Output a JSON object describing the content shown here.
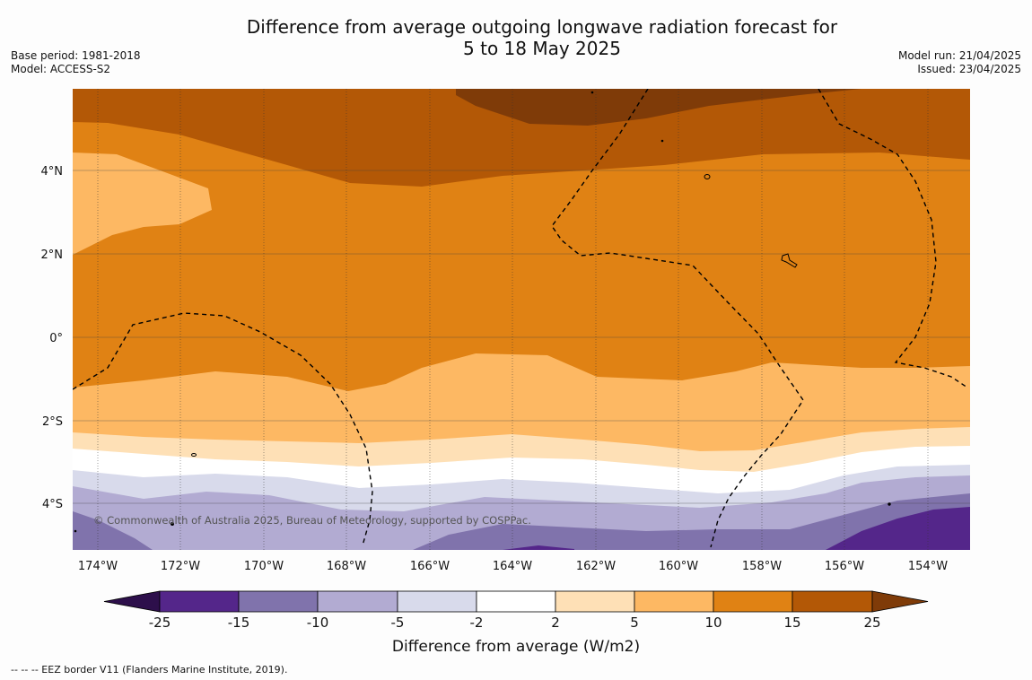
{
  "header": {
    "title_line1": "Difference from average outgoing longwave radiation forecast for",
    "title_line2": "5 to 18 May 2025",
    "base_period": "Base period: 1981-2018",
    "model": "Model: ACCESS-S2",
    "model_run": "Model run: 21/04/2025",
    "issued": "Issued: 23/04/2025"
  },
  "map": {
    "lat_labels": [
      "4°N",
      "2°N",
      "0°",
      "2°S",
      "4°S"
    ],
    "lon_labels": [
      "174°W",
      "172°W",
      "170°W",
      "168°W",
      "166°W",
      "164°W",
      "162°W",
      "160°W",
      "158°W",
      "156°W",
      "154°W"
    ],
    "copyright": "© Commonwealth of Australia 2025, Bureau of Meteorology, supported by COSPPac."
  },
  "legend": {
    "ticks": [
      "-25",
      "-15",
      "-10",
      "-5",
      "-2",
      "2",
      "5",
      "10",
      "15",
      "25"
    ],
    "label": "Difference from average (W/m2)",
    "colors": {
      "below_-25": "#2d0f4b",
      "-25_-15": "#54268a",
      "-15_-10": "#8073ac",
      "-10_-5": "#b2abd2",
      "-5_-2": "#d8daeb",
      "-2_2": "#ffffff",
      "2_5": "#fee0b6",
      "5_10": "#fdb863",
      "10_15": "#e08214",
      "15_25": "#b35806",
      "above_25": "#7f3b08"
    }
  },
  "footnote": "--  --  -- EEZ border V11 (Flanders Marine Institute, 2019)."
}
